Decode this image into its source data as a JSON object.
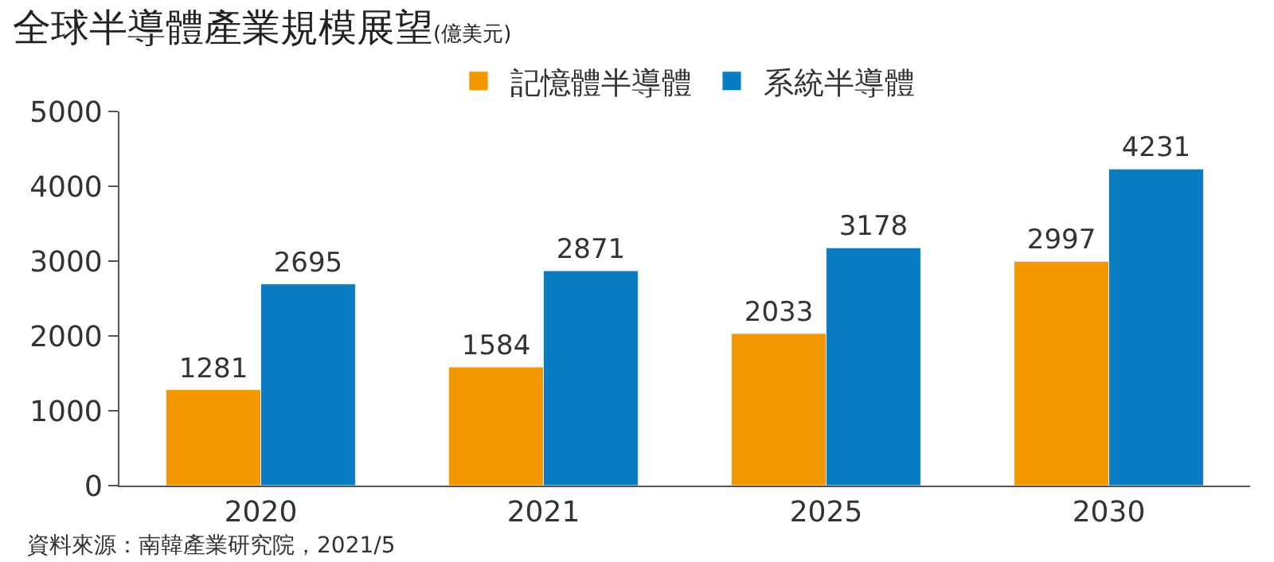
{
  "chart_data": {
    "type": "bar",
    "title": "全球半導體產業規模展望",
    "subtitle": "(億美元)",
    "categories": [
      "2020",
      "2021",
      "2025",
      "2030"
    ],
    "series": [
      {
        "name": "記憶體半導體",
        "color": "#f39800",
        "values": [
          1281,
          1584,
          2033,
          2997
        ]
      },
      {
        "name": "系統半導體",
        "color": "#0a7cc1",
        "values": [
          2695,
          2871,
          3178,
          4231
        ]
      }
    ],
    "ylim": [
      0,
      5000
    ],
    "yticks": [
      0,
      1000,
      2000,
      3000,
      4000,
      5000
    ],
    "data_labels": true,
    "legend": "top",
    "annotations": [
      "資料來源：南韓產業研究院，2021/5"
    ]
  }
}
